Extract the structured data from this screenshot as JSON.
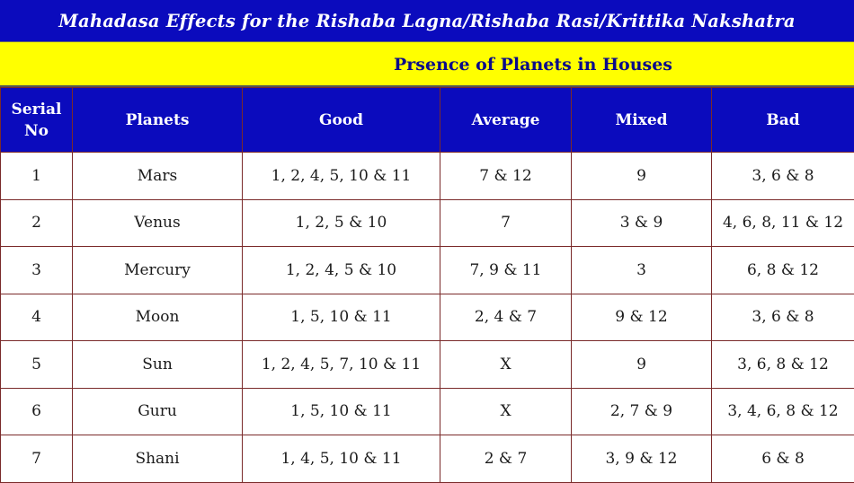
{
  "title": "Mahadasa Effects for the Rishaba Lagna/Rishaba Rasi/Krittika Nakshatra",
  "subtitle": "Prsence of Planets in Houses",
  "colors": {
    "header_blue": "#0b0bbd",
    "subtitle_yellow": "#ffff00",
    "subtitle_text": "#0b0b8a"
  },
  "table": {
    "headers": {
      "serial_line1": "Serial",
      "serial_line2": "No",
      "planets": "Planets",
      "good": "Good",
      "average": "Average",
      "mixed": "Mixed",
      "bad": "Bad"
    },
    "rows": [
      {
        "serial": "1",
        "planet": "Mars",
        "good": "1, 2, 4, 5, 10 & 11",
        "average": "7 & 12",
        "mixed": "9",
        "bad": "3, 6 & 8"
      },
      {
        "serial": "2",
        "planet": "Venus",
        "good": "1, 2, 5 & 10",
        "average": "7",
        "mixed": "3 & 9",
        "bad": "4, 6, 8, 11 & 12"
      },
      {
        "serial": "3",
        "planet": "Mercury",
        "good": "1, 2, 4, 5 & 10",
        "average": "7, 9 & 11",
        "mixed": "3",
        "bad": "6, 8 & 12"
      },
      {
        "serial": "4",
        "planet": "Moon",
        "good": "1, 5, 10 & 11",
        "average": "2, 4 & 7",
        "mixed": "9 & 12",
        "bad": "3, 6 & 8"
      },
      {
        "serial": "5",
        "planet": "Sun",
        "good": "1, 2, 4, 5, 7, 10 & 11",
        "average": "X",
        "mixed": "9",
        "bad": "3, 6, 8 & 12"
      },
      {
        "serial": "6",
        "planet": "Guru",
        "good": "1, 5, 10 & 11",
        "average": "X",
        "mixed": "2, 7 & 9",
        "bad": "3, 4, 6, 8 & 12"
      },
      {
        "serial": "7",
        "planet": "Shani",
        "good": "1, 4, 5, 10 & 11",
        "average": "2 & 7",
        "mixed": "3, 9 & 12",
        "bad": "6 & 8"
      }
    ]
  }
}
